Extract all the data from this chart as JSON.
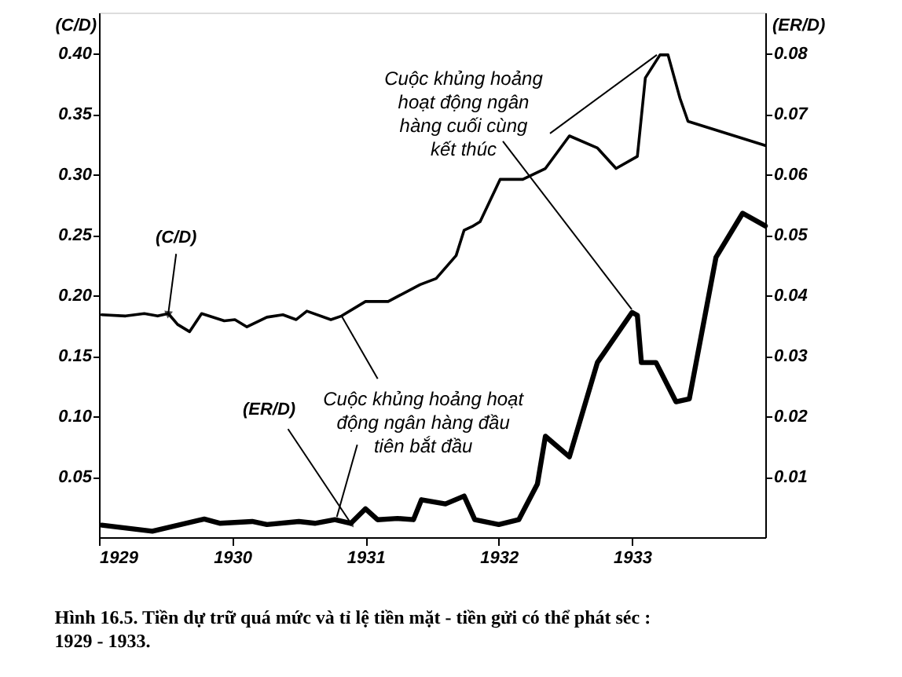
{
  "chart_data": {
    "type": "line",
    "ylabel": "(C/D)",
    "y2label": "(ER/D)",
    "xlim": [
      1929,
      1934
    ],
    "xticks": [
      1929,
      1930,
      1931,
      1932,
      1933
    ],
    "ylim": [
      0,
      0.434
    ],
    "yticks": [
      {
        "value": 0.05,
        "label": "0.05"
      },
      {
        "value": 0.1,
        "label": "0.10"
      },
      {
        "value": 0.15,
        "label": "0.15"
      },
      {
        "value": 0.2,
        "label": "0.20"
      },
      {
        "value": 0.25,
        "label": "0.25"
      },
      {
        "value": 0.3,
        "label": "0.30"
      },
      {
        "value": 0.35,
        "label": "0.35"
      },
      {
        "value": 0.4,
        "label": "0.40"
      }
    ],
    "y2lim": [
      0,
      0.0868
    ],
    "y2ticks": [
      {
        "value": 0.01,
        "label": "0.01"
      },
      {
        "value": 0.02,
        "label": "0.02"
      },
      {
        "value": 0.03,
        "label": "0.03"
      },
      {
        "value": 0.04,
        "label": "0.04"
      },
      {
        "value": 0.05,
        "label": "0.05"
      },
      {
        "value": 0.06,
        "label": "0.06"
      },
      {
        "value": 0.07,
        "label": "0.07"
      },
      {
        "value": 0.08,
        "label": "0.08"
      }
    ],
    "grid": false,
    "marker": "none",
    "line_style": "solid",
    "series": [
      {
        "name": "(C/D)",
        "color": "#000000",
        "x": [
          1929.02,
          1929.2,
          1929.34,
          1929.44,
          1929.52,
          1929.59,
          1929.68,
          1929.77,
          1929.94,
          1930.02,
          1930.11,
          1930.26,
          1930.38,
          1930.48,
          1930.56,
          1930.74,
          1930.82,
          1931.0,
          1931.17,
          1931.41,
          1931.53,
          1931.68,
          1931.74,
          1931.8,
          1931.86,
          1932.01,
          1932.18,
          1932.35,
          1932.53,
          1932.74,
          1932.88,
          1933.04,
          1933.1,
          1933.21,
          1933.27,
          1933.36,
          1933.42,
          1934.0
        ],
        "values": [
          0.184,
          0.183,
          0.185,
          0.183,
          0.185,
          0.176,
          0.17,
          0.185,
          0.179,
          0.18,
          0.174,
          0.182,
          0.184,
          0.18,
          0.187,
          0.18,
          0.183,
          0.195,
          0.195,
          0.209,
          0.214,
          0.233,
          0.254,
          0.257,
          0.261,
          0.296,
          0.296,
          0.305,
          0.332,
          0.322,
          0.305,
          0.315,
          0.38,
          0.399,
          0.399,
          0.363,
          0.344,
          0.324
        ]
      },
      {
        "name": "(ER/D)",
        "color": "#000000",
        "axis": "y2",
        "x": [
          1929.02,
          1929.4,
          1929.79,
          1929.91,
          1930.15,
          1930.26,
          1930.5,
          1930.62,
          1930.77,
          1930.89,
          1931.0,
          1931.09,
          1931.24,
          1931.36,
          1931.42,
          1931.6,
          1931.74,
          1931.82,
          1932.0,
          1932.15,
          1932.29,
          1932.35,
          1932.53,
          1932.74,
          1933.0,
          1933.04,
          1933.07,
          1933.18,
          1933.33,
          1933.43,
          1933.63,
          1933.83,
          1934.0
        ],
        "values": [
          0.002,
          0.001,
          0.003,
          0.0023,
          0.0026,
          0.0021,
          0.0026,
          0.0023,
          0.0029,
          0.0023,
          0.0047,
          0.0029,
          0.0031,
          0.0029,
          0.0062,
          0.0055,
          0.0068,
          0.0029,
          0.0021,
          0.0029,
          0.0088,
          0.0167,
          0.0133,
          0.0289,
          0.0372,
          0.0367,
          0.0289,
          0.0289,
          0.0224,
          0.0229,
          0.0463,
          0.0536,
          0.0515
        ]
      }
    ],
    "annotations": [
      {
        "text": "Cuộc khủng hoảng hoạt động ngân hàng đầu tiên bắt đầu",
        "x": 1930.82,
        "y": 0.183
      },
      {
        "text": "Cuộc khủng hoảng hoạt động ngân hàng cuối cùng kết thúc",
        "x": 1933.21,
        "y": 0.399
      },
      "Hình 16.5. Tiền dự trữ quá mức và tỉ lệ tiền mặt - tiền gửi có thể phát séc : 1929 - 1933."
    ]
  }
}
